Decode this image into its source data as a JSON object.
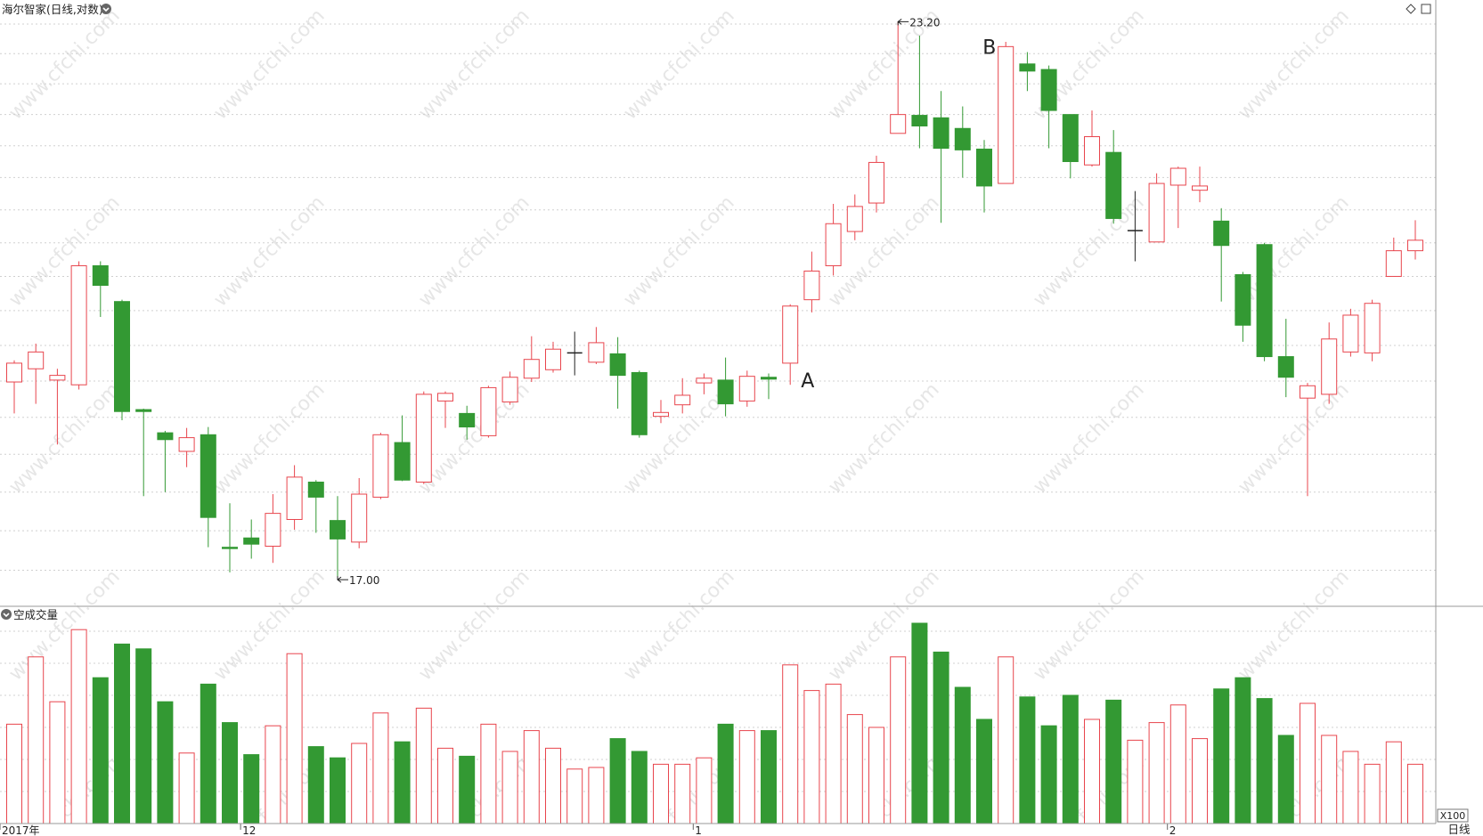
{
  "title": "海尔智家(日线,对数)",
  "title_chevron_icon": "chevron-down-icon",
  "toolbar_icons": [
    "diamond-icon",
    "maximize-icon"
  ],
  "volume_title": "空成交量",
  "volume_chevron_icon": "chevron-down-icon",
  "volume_unit": "X100",
  "period_label": "日线",
  "annotations": {
    "low_label": "17.00",
    "high_label": "23.20",
    "point_a": "A",
    "point_b": "B"
  },
  "watermark": "www.cfchi.com",
  "colors": {
    "up": "#e8454d",
    "down": "#339933",
    "doji": "#222222",
    "grid": "#d0d0d0",
    "background": "#ffffff"
  },
  "chart_data": {
    "type": "candlestick",
    "price_axis": {
      "scale": "log",
      "range": [
        16.9,
        23.25
      ],
      "ticks": [
        "17.09",
        "17.47",
        "17.85",
        "18.23",
        "18.61",
        "18.99",
        "19.37",
        "19.75",
        "20.13",
        "20.51",
        "20.89",
        "21.27",
        "21.65",
        "22.03",
        "22.41",
        "22.79",
        "23.17"
      ]
    },
    "volume_axis": {
      "range": [
        0,
        12500
      ],
      "ticks": [
        "2000",
        "4000",
        "6000",
        "8000",
        "10000",
        "12000"
      ]
    },
    "x_labels": [
      {
        "label": "2017年",
        "index": 0
      },
      {
        "label": "12",
        "index": 11
      },
      {
        "label": "1",
        "index": 32
      },
      {
        "label": "2",
        "index": 54
      }
    ],
    "candles": [
      {
        "o": 18.98,
        "c": 19.18,
        "h": 19.21,
        "l": 18.65,
        "v": 6200
      },
      {
        "o": 19.12,
        "c": 19.3,
        "h": 19.39,
        "l": 18.75,
        "v": 10400
      },
      {
        "o": 19.0,
        "c": 19.05,
        "h": 19.12,
        "l": 18.33,
        "v": 7600
      },
      {
        "o": 18.95,
        "c": 20.25,
        "h": 20.3,
        "l": 18.9,
        "v": 12100
      },
      {
        "o": 20.25,
        "c": 20.03,
        "h": 20.3,
        "l": 19.68,
        "v": 9100
      },
      {
        "o": 19.85,
        "c": 18.67,
        "h": 19.87,
        "l": 18.58,
        "v": 11200
      },
      {
        "o": 18.69,
        "c": 18.67,
        "h": 18.7,
        "l": 17.81,
        "v": 10900
      },
      {
        "o": 18.45,
        "c": 18.38,
        "h": 18.47,
        "l": 17.85,
        "v": 7600
      },
      {
        "o": 18.26,
        "c": 18.4,
        "h": 18.5,
        "l": 18.1,
        "v": 4400
      },
      {
        "o": 18.43,
        "c": 17.6,
        "h": 18.51,
        "l": 17.31,
        "v": 8700
      },
      {
        "o": 17.31,
        "c": 17.3,
        "h": 17.74,
        "l": 17.07,
        "v": 6300
      },
      {
        "o": 17.4,
        "c": 17.34,
        "h": 17.58,
        "l": 17.2,
        "v": 4300
      },
      {
        "o": 17.32,
        "c": 17.64,
        "h": 17.83,
        "l": 17.16,
        "v": 6100
      },
      {
        "o": 17.58,
        "c": 18.0,
        "h": 18.12,
        "l": 17.48,
        "v": 10600
      },
      {
        "o": 17.95,
        "c": 17.8,
        "h": 17.97,
        "l": 17.45,
        "v": 4800
      },
      {
        "o": 17.57,
        "c": 17.39,
        "h": 17.81,
        "l": 17.0,
        "v": 4100
      },
      {
        "o": 17.36,
        "c": 17.83,
        "h": 17.99,
        "l": 17.3,
        "v": 5000
      },
      {
        "o": 17.8,
        "c": 18.43,
        "h": 18.45,
        "l": 17.78,
        "v": 6900
      },
      {
        "o": 18.35,
        "c": 17.97,
        "h": 18.63,
        "l": 17.96,
        "v": 5100
      },
      {
        "o": 17.95,
        "c": 18.85,
        "h": 18.88,
        "l": 17.93,
        "v": 7200
      },
      {
        "o": 18.78,
        "c": 18.86,
        "h": 18.88,
        "l": 18.5,
        "v": 4700
      },
      {
        "o": 18.65,
        "c": 18.51,
        "h": 18.73,
        "l": 18.38,
        "v": 4200
      },
      {
        "o": 18.42,
        "c": 18.92,
        "h": 18.94,
        "l": 18.4,
        "v": 6200
      },
      {
        "o": 18.77,
        "c": 19.03,
        "h": 19.09,
        "l": 18.74,
        "v": 4500
      },
      {
        "o": 19.02,
        "c": 19.22,
        "h": 19.47,
        "l": 18.98,
        "v": 5800
      },
      {
        "o": 19.11,
        "c": 19.33,
        "h": 19.41,
        "l": 19.08,
        "v": 4700
      },
      {
        "o": 19.29,
        "c": 19.29,
        "h": 19.52,
        "l": 19.05,
        "v": 3400
      },
      {
        "o": 19.19,
        "c": 19.4,
        "h": 19.57,
        "l": 19.17,
        "v": 3500
      },
      {
        "o": 19.28,
        "c": 19.05,
        "h": 19.46,
        "l": 18.7,
        "v": 5300
      },
      {
        "o": 19.08,
        "c": 18.43,
        "h": 19.1,
        "l": 18.4,
        "v": 4500
      },
      {
        "o": 18.62,
        "c": 18.66,
        "h": 18.79,
        "l": 18.55,
        "v": 3700
      },
      {
        "o": 18.74,
        "c": 18.84,
        "h": 19.02,
        "l": 18.65,
        "v": 3700
      },
      {
        "o": 18.97,
        "c": 19.02,
        "h": 19.07,
        "l": 18.85,
        "v": 4100
      },
      {
        "o": 19.0,
        "c": 18.75,
        "h": 19.24,
        "l": 18.62,
        "v": 6200
      },
      {
        "o": 18.78,
        "c": 19.04,
        "h": 19.1,
        "l": 18.72,
        "v": 5800
      },
      {
        "o": 19.03,
        "c": 19.01,
        "h": 19.07,
        "l": 18.8,
        "v": 5800
      },
      {
        "o": 19.18,
        "c": 19.8,
        "h": 19.82,
        "l": 18.95,
        "v": 9900
      },
      {
        "o": 19.87,
        "c": 20.19,
        "h": 20.41,
        "l": 19.73,
        "v": 8300
      },
      {
        "o": 20.25,
        "c": 20.73,
        "h": 20.96,
        "l": 20.14,
        "v": 8700
      },
      {
        "o": 20.64,
        "c": 20.93,
        "h": 21.07,
        "l": 20.54,
        "v": 6800
      },
      {
        "o": 20.97,
        "c": 21.45,
        "h": 21.53,
        "l": 20.86,
        "v": 6000
      },
      {
        "o": 21.8,
        "c": 22.03,
        "h": 23.2,
        "l": 21.8,
        "v": 10400
      },
      {
        "o": 22.02,
        "c": 21.89,
        "h": 23.02,
        "l": 21.62,
        "v": 12500
      },
      {
        "o": 21.99,
        "c": 21.62,
        "h": 22.32,
        "l": 20.74,
        "v": 10700
      },
      {
        "o": 21.86,
        "c": 21.6,
        "h": 22.13,
        "l": 21.27,
        "v": 8500
      },
      {
        "o": 21.61,
        "c": 21.17,
        "h": 21.72,
        "l": 20.86,
        "v": 6500
      },
      {
        "o": 21.2,
        "c": 22.88,
        "h": 22.94,
        "l": 21.2,
        "v": 10400
      },
      {
        "o": 22.66,
        "c": 22.57,
        "h": 22.81,
        "l": 22.32,
        "v": 7900
      },
      {
        "o": 22.59,
        "c": 22.08,
        "h": 22.64,
        "l": 21.62,
        "v": 6100
      },
      {
        "o": 22.03,
        "c": 21.46,
        "h": 22.03,
        "l": 21.26,
        "v": 8000
      },
      {
        "o": 21.42,
        "c": 21.76,
        "h": 22.08,
        "l": 21.4,
        "v": 6500
      },
      {
        "o": 21.57,
        "c": 20.79,
        "h": 21.84,
        "l": 20.73,
        "v": 7700
      },
      {
        "o": 20.65,
        "c": 20.65,
        "h": 21.11,
        "l": 20.3,
        "v": 5200
      },
      {
        "o": 20.52,
        "c": 21.2,
        "h": 21.32,
        "l": 20.52,
        "v": 6300
      },
      {
        "o": 21.18,
        "c": 21.38,
        "h": 21.4,
        "l": 20.68,
        "v": 7400
      },
      {
        "o": 21.12,
        "c": 21.17,
        "h": 21.4,
        "l": 20.98,
        "v": 5300
      },
      {
        "o": 20.76,
        "c": 20.48,
        "h": 20.91,
        "l": 19.85,
        "v": 8400
      },
      {
        "o": 20.15,
        "c": 19.59,
        "h": 20.18,
        "l": 19.41,
        "v": 9100
      },
      {
        "o": 20.49,
        "c": 19.25,
        "h": 20.51,
        "l": 19.2,
        "v": 7800
      },
      {
        "o": 19.25,
        "c": 19.03,
        "h": 19.66,
        "l": 18.82,
        "v": 5500
      },
      {
        "o": 18.81,
        "c": 18.94,
        "h": 18.97,
        "l": 17.81,
        "v": 7500
      },
      {
        "o": 18.85,
        "c": 19.44,
        "h": 19.62,
        "l": 18.75,
        "v": 5500
      },
      {
        "o": 19.3,
        "c": 19.7,
        "h": 19.77,
        "l": 19.25,
        "v": 4500
      },
      {
        "o": 19.29,
        "c": 19.83,
        "h": 19.87,
        "l": 19.2,
        "v": 3700
      },
      {
        "o": 20.13,
        "c": 20.42,
        "h": 20.57,
        "l": 20.13,
        "v": 5100
      },
      {
        "o": 20.42,
        "c": 20.54,
        "h": 20.77,
        "l": 20.32,
        "v": 3700
      }
    ]
  }
}
